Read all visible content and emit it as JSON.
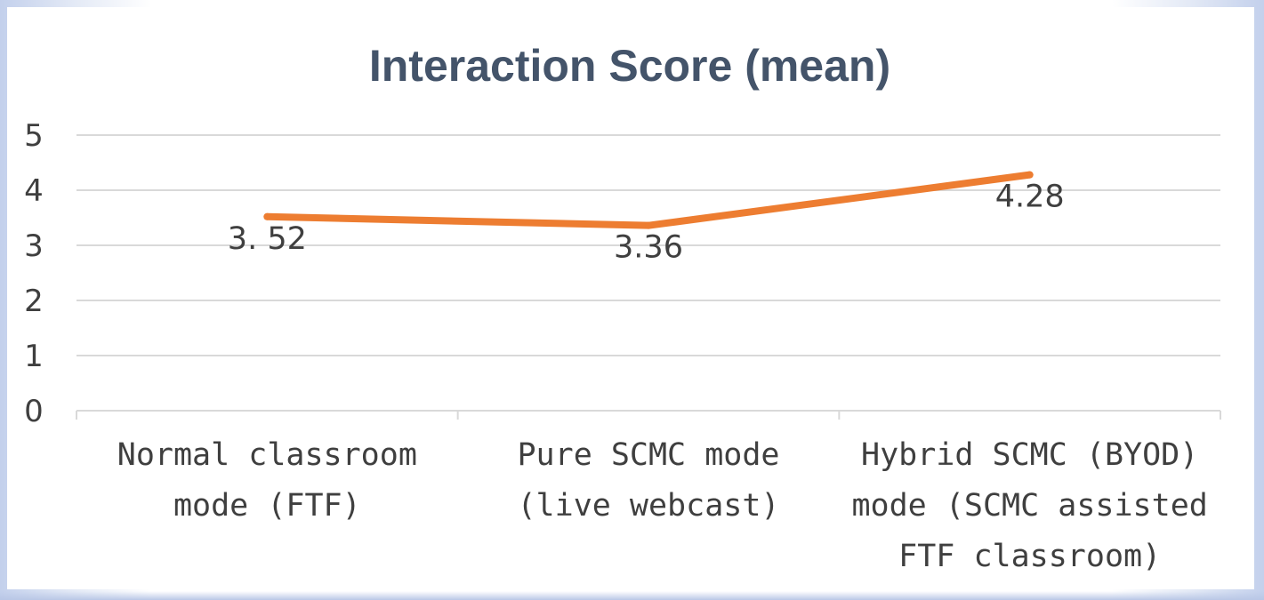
{
  "chart_data": {
    "type": "line",
    "title": "Interaction Score (mean)",
    "xlabel": "",
    "ylabel": "",
    "categories": [
      [
        "Normal classroom",
        "mode (FTF)"
      ],
      [
        "Pure SCMC mode",
        "(live webcast)"
      ],
      [
        "Hybrid SCMC (BYOD)",
        "mode (SCMC assisted",
        "FTF classroom)"
      ]
    ],
    "series": [
      {
        "values": [
          3.52,
          3.36,
          4.28
        ],
        "data_labels": [
          "3. 52",
          "3.36",
          "4.28"
        ],
        "color": "#ed7d31"
      }
    ],
    "ylim": [
      0,
      5
    ],
    "yticks": [
      "0",
      "1",
      "2",
      "3",
      "4",
      "5"
    ],
    "grid": true,
    "legend": "none"
  }
}
